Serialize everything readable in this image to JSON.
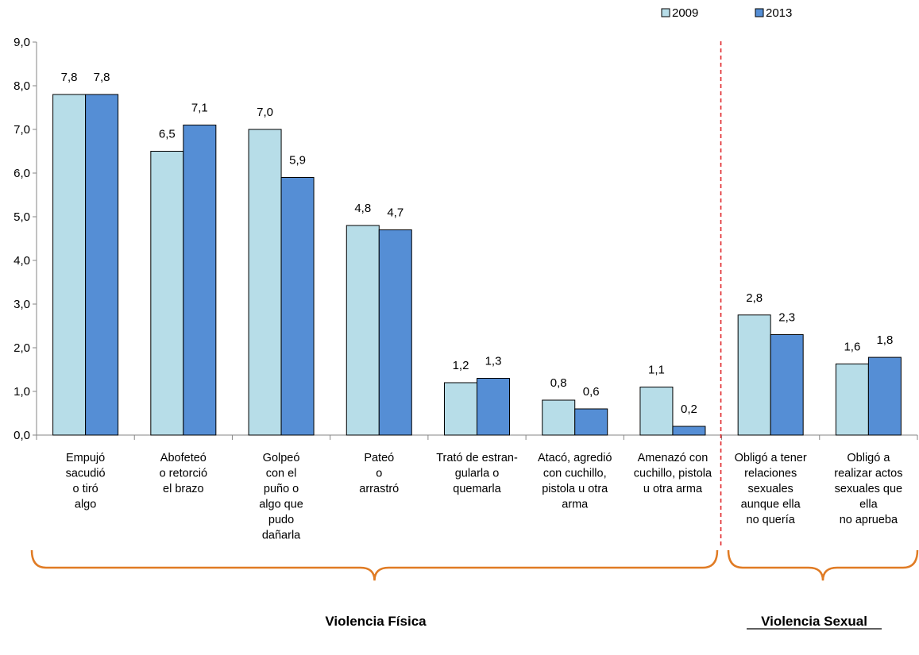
{
  "chart_data": {
    "type": "bar",
    "ylim": [
      0,
      9
    ],
    "yticks": [
      "0,0",
      "1,0",
      "2,0",
      "3,0",
      "4,0",
      "5,0",
      "6,0",
      "7,0",
      "8,0",
      "9,0"
    ],
    "grid": false,
    "legend_position": "top-right",
    "categories": [
      [
        "Empujó",
        "sacudió",
        "o tiró",
        "algo"
      ],
      [
        "Abofeteó",
        "o retorció",
        "el brazo"
      ],
      [
        "Golpeó",
        "con el",
        "puño o",
        "algo que",
        "pudo",
        "dañarla"
      ],
      [
        "Pateó",
        "o",
        "arrastró"
      ],
      [
        "Trató de estran-",
        "gularla o",
        "quemarla"
      ],
      [
        "Atacó, agredió",
        "con cuchillo,",
        "pistola u otra",
        "arma"
      ],
      [
        "Amenazó con",
        "cuchillo, pistola",
        "u otra arma"
      ],
      [
        "Obligó a tener",
        "relaciones",
        "sexuales",
        "aunque ella",
        "no quería"
      ],
      [
        "Obligó a",
        "realizar actos",
        "sexuales que",
        "ella",
        "no aprueba"
      ]
    ],
    "series": [
      {
        "name": "2009",
        "color": "#b7dde8",
        "values": [
          7.8,
          6.5,
          7.0,
          4.8,
          1.2,
          0.8,
          1.1,
          2.75,
          1.63
        ],
        "labels": [
          "7,8",
          "6,5",
          "7,0",
          "4,8",
          "1,2",
          "0,8",
          "1,1",
          "2,8",
          "1,6"
        ]
      },
      {
        "name": "2013",
        "color": "#558ed5",
        "values": [
          7.8,
          7.1,
          5.9,
          4.7,
          1.3,
          0.6,
          0.2,
          2.3,
          1.78
        ],
        "labels": [
          "7,8",
          "7,1",
          "5,9",
          "4,7",
          "1,3",
          "0,6",
          "0,2",
          "2,3",
          "1,8"
        ]
      }
    ],
    "groups": [
      {
        "name": "Violencia Física",
        "from": 0,
        "to": 6,
        "underline": false
      },
      {
        "name": "Violencia Sexual",
        "from": 7,
        "to": 8,
        "underline": true
      }
    ],
    "brace_color": "#e07b24",
    "divider_color": "#e0262a"
  }
}
